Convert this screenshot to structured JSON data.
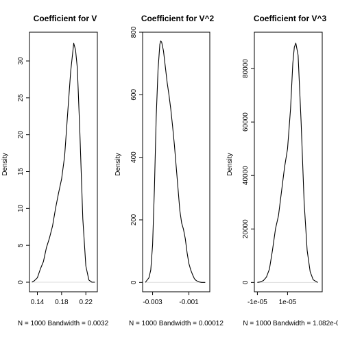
{
  "chart_data": [
    {
      "type": "line",
      "title": "Coefficient for V",
      "xlabel": "N = 1000   Bandwidth = 0.0032",
      "ylabel": "Density",
      "xlim": [
        0.127,
        0.239
      ],
      "ylim": [
        -1.3,
        33.9
      ],
      "xticks": [
        0.14,
        0.18,
        0.22
      ],
      "xtick_labels": [
        "0.14",
        "0.18",
        "0.22"
      ],
      "yticks": [
        0,
        5,
        10,
        15,
        20,
        25,
        30
      ],
      "ytick_labels": [
        "0",
        "5",
        "10",
        "15",
        "20",
        "25",
        "30"
      ],
      "grid": false,
      "series": [
        {
          "x": [
            0.131,
            0.135,
            0.14,
            0.145,
            0.15,
            0.155,
            0.16,
            0.165,
            0.17,
            0.175,
            0.18,
            0.185,
            0.19,
            0.195,
            0.2,
            0.203,
            0.206,
            0.21,
            0.215,
            0.22,
            0.225,
            0.23,
            0.235
          ],
          "y": [
            0.0,
            0.2,
            0.6,
            1.8,
            2.8,
            4.7,
            6.0,
            7.6,
            10.0,
            12.1,
            14.0,
            17.1,
            22.9,
            28.6,
            32.4,
            31.5,
            29.0,
            20.6,
            8.6,
            2.2,
            0.3,
            0.0,
            0.0
          ]
        }
      ]
    },
    {
      "type": "line",
      "title": "Coefficient for V^2",
      "xlabel": "N = 1000   Bandwidth = 0.00012",
      "ylabel": "Density",
      "xlim": [
        -0.00355,
        0.00015
      ],
      "ylim": [
        -30,
        800
      ],
      "xticks": [
        -0.003,
        -0.001
      ],
      "xtick_labels": [
        "-0.003",
        "-0.001"
      ],
      "yticks": [
        0,
        200,
        400,
        600,
        800
      ],
      "ytick_labels": [
        "0",
        "200",
        "400",
        "600",
        "800"
      ],
      "grid": false,
      "series": [
        {
          "x": [
            -0.0034,
            -0.0032,
            -0.0031,
            -0.003,
            -0.0029,
            -0.0028,
            -0.0027,
            -0.0026,
            -0.00255,
            -0.0025,
            -0.0024,
            -0.0023,
            -0.0022,
            -0.0021,
            -0.002,
            -0.0019,
            -0.0018,
            -0.0017,
            -0.0016,
            -0.0015,
            -0.0014,
            -0.0013,
            -0.0012,
            -0.0011,
            -0.001,
            -0.0009,
            -0.0008,
            -0.0007,
            -0.0006,
            -0.0005,
            -0.0004,
            -0.0003,
            -0.0002,
            -0.0001
          ],
          "y": [
            0,
            15,
            40,
            120,
            300,
            530,
            680,
            762,
            772,
            768,
            740,
            690,
            640,
            600,
            555,
            500,
            440,
            370,
            300,
            230,
            190,
            170,
            140,
            95,
            60,
            40,
            25,
            12,
            6,
            3,
            1,
            0,
            0,
            0
          ]
        }
      ]
    },
    {
      "type": "line",
      "title": "Coefficient for V^3",
      "xlabel": "N = 1000   Bandwidth = 1.082e-0",
      "ylabel": "Density",
      "xlim": [
        -1.2e-05,
        3.3e-05
      ],
      "ylim": [
        -3500,
        93600
      ],
      "xticks": [
        -1e-05,
        1e-05
      ],
      "xtick_labels": [
        "-1e-05",
        "1e-05"
      ],
      "yticks": [
        0,
        20000,
        40000,
        60000,
        80000
      ],
      "ytick_labels": [
        "0",
        "20000",
        "40000",
        "60000",
        "80000"
      ],
      "grid": false,
      "series": [
        {
          "x": [
            -1e-05,
            -8e-06,
            -6e-06,
            -4e-06,
            -2e-06,
            0,
            2e-06,
            4e-06,
            6e-06,
            8e-06,
            1e-05,
            1.2e-05,
            1.35e-05,
            1.45e-05,
            1.55e-05,
            1.7e-05,
            1.9e-05,
            2.1e-05,
            2.3e-05,
            2.5e-05,
            2.7e-05,
            3e-05
          ],
          "y": [
            0,
            200,
            700,
            2000,
            5000,
            12000,
            20000,
            25000,
            34000,
            43000,
            50000,
            65000,
            82000,
            88000,
            89500,
            85000,
            60000,
            30000,
            12000,
            4000,
            1000,
            0
          ]
        }
      ]
    }
  ]
}
